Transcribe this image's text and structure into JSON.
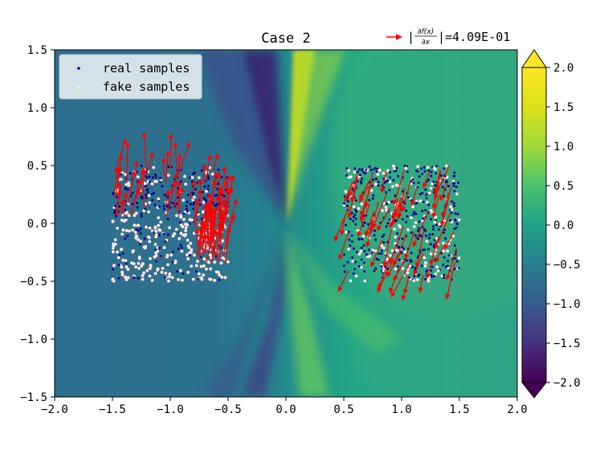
{
  "chart_data": {
    "type": "heatmap",
    "title": "Case 2",
    "xlabel": "",
    "ylabel": "",
    "xlim": [
      -2.0,
      2.0
    ],
    "ylim": [
      -1.5,
      1.5
    ],
    "x_ticks": [
      "−2.0",
      "−1.5",
      "−1.0",
      "−0.5",
      "0.0",
      "0.5",
      "1.0",
      "1.5",
      "2.0"
    ],
    "y_ticks": [
      "−1.5",
      "−1.0",
      "−0.5",
      "0.0",
      "0.5",
      "1.0",
      "1.5"
    ],
    "grid": false,
    "colormap": "viridis",
    "colorbar": {
      "range": [
        -2.0,
        2.0
      ],
      "ticks": [
        "2.0",
        "1.5",
        "1.0",
        "0.5",
        "0.0",
        "−0.5",
        "−1.0",
        "−1.5",
        "−2.0"
      ],
      "extend": "both"
    },
    "legend": {
      "placement": "top-left",
      "entries": [
        {
          "label": "real samples",
          "color": "#00008b"
        },
        {
          "label": "fake samples",
          "color": "#f5f5dc"
        }
      ]
    },
    "quiver_key": {
      "label_prefix": "|",
      "numerator": "∂f(x)",
      "denominator": "∂x",
      "label_suffix": "|=4.09E-01",
      "color": "#ff0000"
    },
    "sample_regions": [
      {
        "name": "left cluster",
        "x": [
          -1.5,
          -0.5
        ],
        "y": [
          -0.5,
          0.5
        ],
        "fake_fraction": 0.55,
        "arrows_upward": true
      },
      {
        "name": "right cluster",
        "x": [
          0.5,
          1.5
        ],
        "y": [
          -0.5,
          0.5
        ],
        "fake_fraction": 0.3,
        "arrows_upward": false
      }
    ]
  }
}
